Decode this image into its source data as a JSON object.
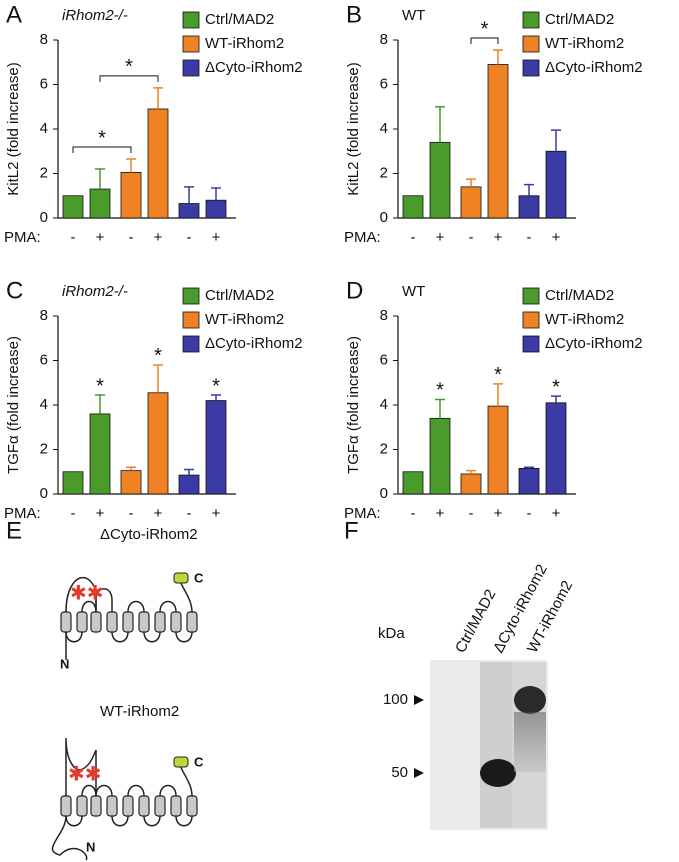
{
  "chart_data": [
    {
      "type": "bar",
      "panel": "A",
      "title": "iRhom2-/-",
      "ylabel": "KitL2 (fold increase)",
      "xlabel": "PMA:",
      "categories": [
        "-",
        "+"
      ],
      "series": [
        {
          "name": "Ctrl/MAD2",
          "color": "#4b9a2c",
          "values": [
            1.0,
            1.3
          ],
          "errors": [
            null,
            0.9
          ]
        },
        {
          "name": "WT-iRhom2",
          "color": "#ee8224",
          "values": [
            2.05,
            4.9
          ],
          "errors": [
            0.6,
            0.95
          ]
        },
        {
          "name": "ΔCyto-iRhom2",
          "color": "#3b3ba6",
          "values": [
            0.65,
            0.8
          ],
          "errors": [
            0.75,
            0.55
          ]
        }
      ],
      "annotations": [
        "*",
        "*"
      ],
      "ylim": [
        0,
        8
      ],
      "yticks": [
        0,
        2,
        4,
        6,
        8
      ]
    },
    {
      "type": "bar",
      "panel": "B",
      "title": "WT",
      "ylabel": "KitL2 (fold increase)",
      "xlabel": "PMA:",
      "categories": [
        "-",
        "+"
      ],
      "series": [
        {
          "name": "Ctrl/MAD2",
          "color": "#4b9a2c",
          "values": [
            1.0,
            3.4
          ],
          "errors": [
            null,
            1.6
          ]
        },
        {
          "name": "WT-iRhom2",
          "color": "#ee8224",
          "values": [
            1.4,
            6.9
          ],
          "errors": [
            0.35,
            0.65
          ]
        },
        {
          "name": "ΔCyto-iRhom2",
          "color": "#3b3ba6",
          "values": [
            1.0,
            3.0
          ],
          "errors": [
            0.5,
            0.95
          ]
        }
      ],
      "annotations": [
        "*"
      ],
      "ylim": [
        0,
        8
      ],
      "yticks": [
        0,
        2,
        4,
        6,
        8
      ]
    },
    {
      "type": "bar",
      "panel": "C",
      "title": "iRhom2-/-",
      "ylabel": "TGFα (fold increase)",
      "xlabel": "PMA:",
      "categories": [
        "-",
        "+"
      ],
      "series": [
        {
          "name": "Ctrl/MAD2",
          "color": "#4b9a2c",
          "values": [
            1.0,
            3.6
          ],
          "errors": [
            null,
            0.85
          ]
        },
        {
          "name": "WT-iRhom2",
          "color": "#ee8224",
          "values": [
            1.05,
            4.55
          ],
          "errors": [
            0.15,
            1.25
          ]
        },
        {
          "name": "ΔCyto-iRhom2",
          "color": "#3b3ba6",
          "values": [
            0.85,
            4.2
          ],
          "errors": [
            0.25,
            0.25
          ]
        }
      ],
      "annotations": [
        "*",
        "*",
        "*"
      ],
      "ylim": [
        0,
        8
      ],
      "yticks": [
        0,
        2,
        4,
        6,
        8
      ]
    },
    {
      "type": "bar",
      "panel": "D",
      "title": "WT",
      "ylabel": "TGFα (fold increase)",
      "xlabel": "PMA:",
      "categories": [
        "-",
        "+"
      ],
      "series": [
        {
          "name": "Ctrl/MAD2",
          "color": "#4b9a2c",
          "values": [
            1.0,
            3.4
          ],
          "errors": [
            null,
            0.85
          ]
        },
        {
          "name": "WT-iRhom2",
          "color": "#ee8224",
          "values": [
            0.9,
            3.95
          ],
          "errors": [
            0.15,
            1.0
          ]
        },
        {
          "name": "ΔCyto-iRhom2",
          "color": "#3b3ba6",
          "values": [
            1.15,
            4.1
          ],
          "errors": [
            0.05,
            0.3
          ]
        }
      ],
      "annotations": [
        "*",
        "*",
        "*"
      ],
      "ylim": [
        0,
        8
      ],
      "yticks": [
        0,
        2,
        4,
        6,
        8
      ]
    }
  ],
  "diagram": {
    "panel": "E",
    "constructs": [
      {
        "name": "ΔCyto-iRhom2",
        "n_label": "N",
        "c_label": "C"
      },
      {
        "name": "WT-iRhom2",
        "n_label": "N",
        "c_label": "C"
      }
    ]
  },
  "blot": {
    "panel": "F",
    "unit": "kDa",
    "markers": [
      100,
      50
    ],
    "lanes": [
      "Ctrl/MAD2",
      "ΔCyto-iRhom2",
      "WT-iRhom2"
    ]
  }
}
